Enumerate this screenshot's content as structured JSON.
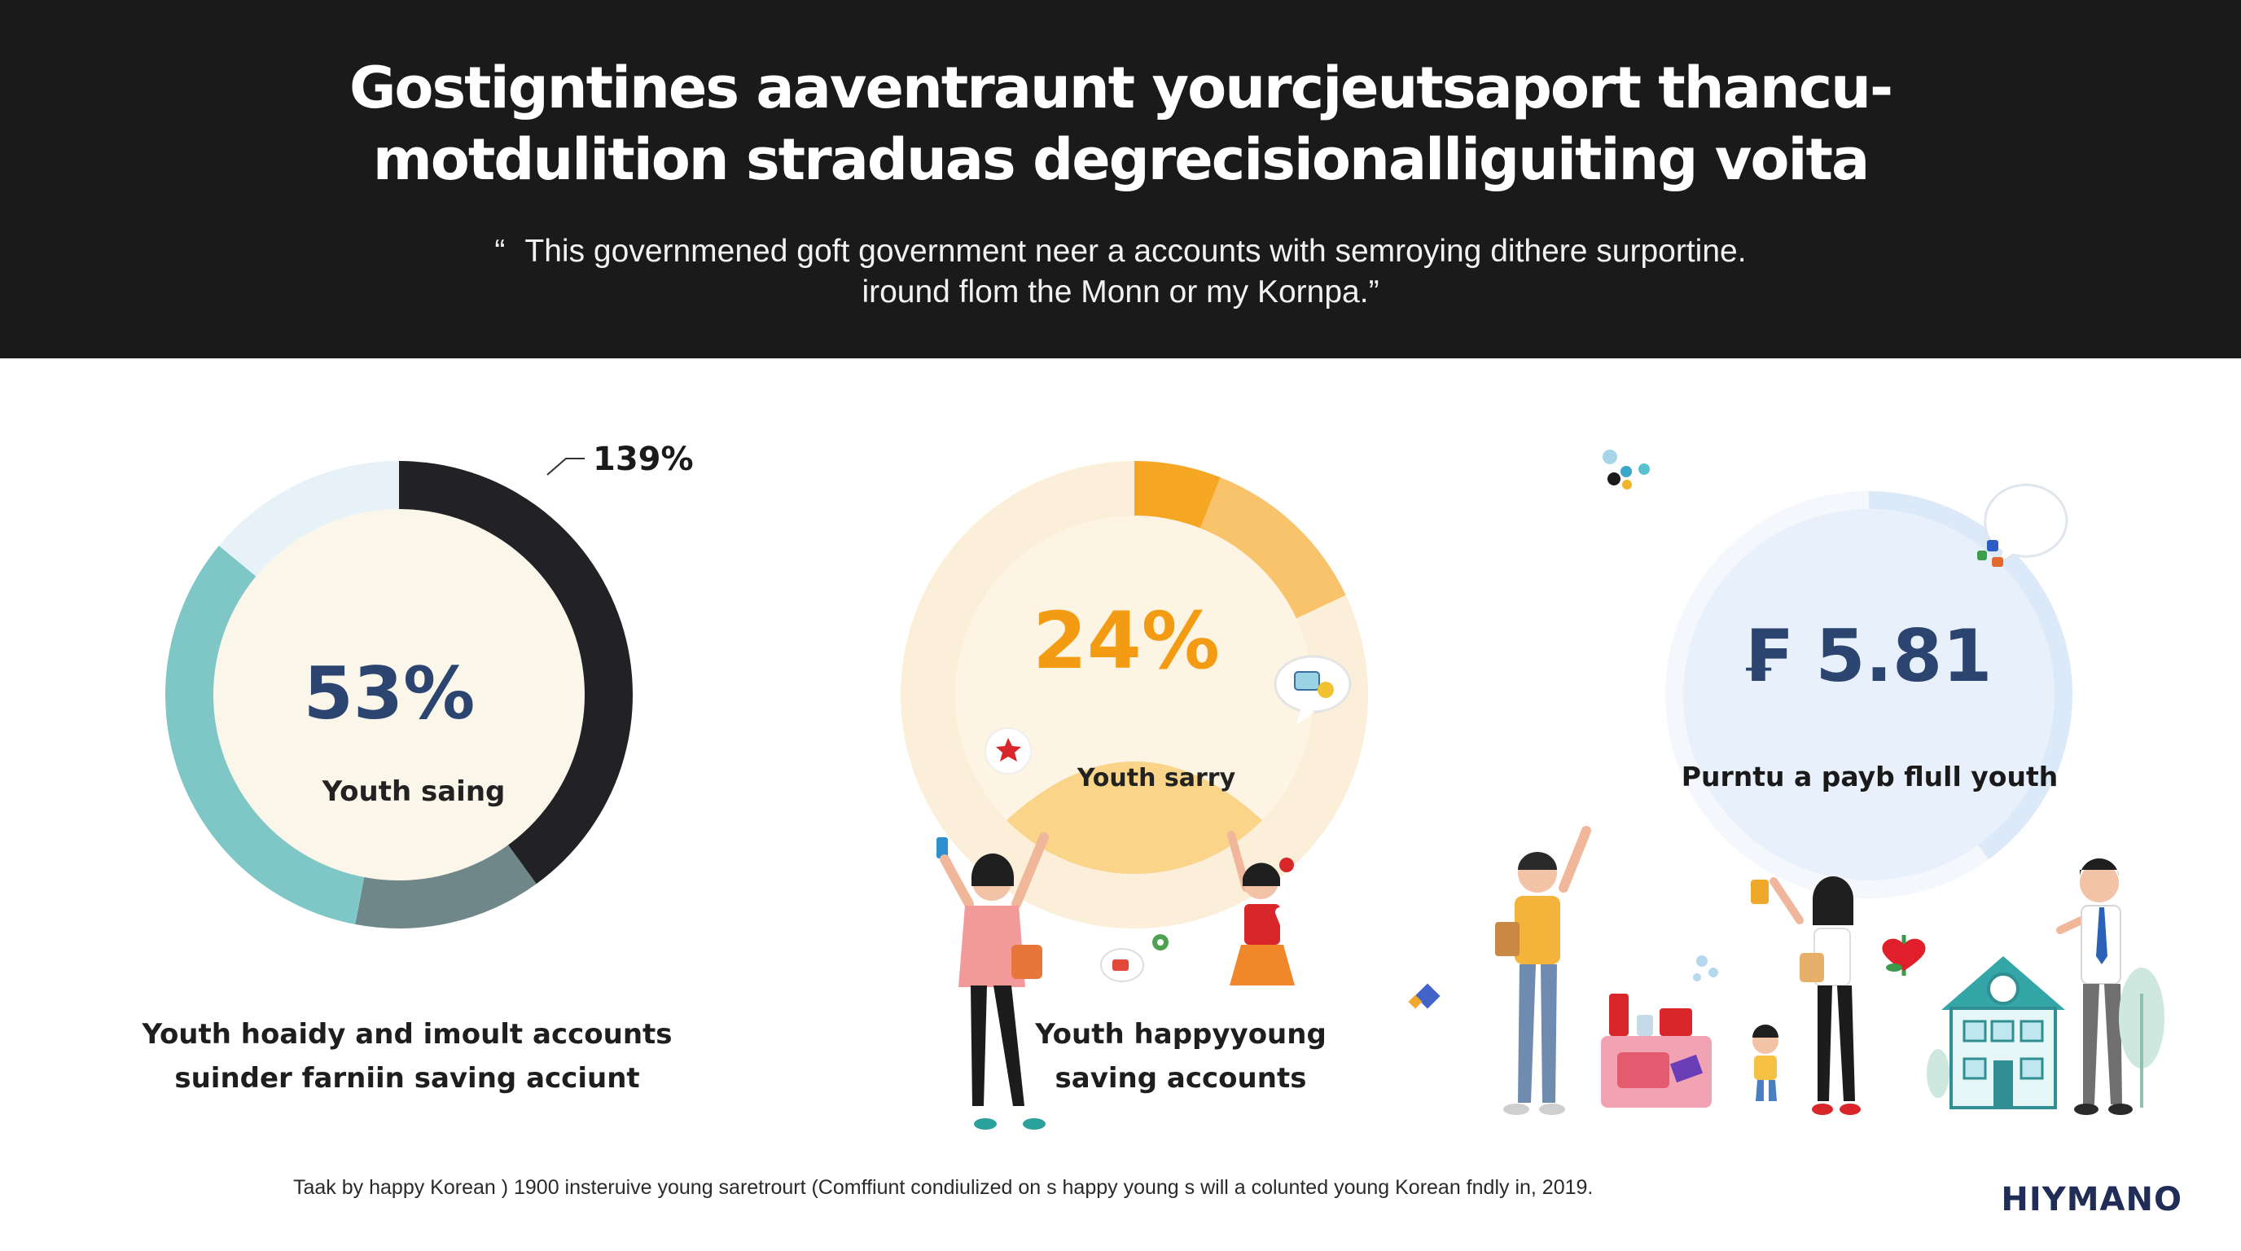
{
  "header": {
    "title_line1": "Gostigntines aaventraunt yourcjeutsaport thancu-",
    "title_line2": "motdulition straduas degrecisionalliguiting voita",
    "quote_mark": "“",
    "quote_line1": "This governmened goft government neer a accounts with semroying dithere surportine.",
    "quote_line2": "iround flom the Monn or my Kornpa.”"
  },
  "colors": {
    "header_bg": "#1a1a1a",
    "dark_navy": "#2b4470",
    "orange": "#f39b12",
    "teal": "#7fc7c6",
    "gray_teal": "#6f8788",
    "black_arc": "#222226",
    "light_blue": "#e4f0fb"
  },
  "chart_data": [
    {
      "type": "pie",
      "variant": "donut",
      "center_value": "53%",
      "center_label": "Youth saing",
      "annotation": "139%",
      "caption_line1": "Youth  hoaidy and imoult accounts",
      "caption_line2": "suinder farniin saving acciunt",
      "slices": [
        {
          "value": 40,
          "color": "#222226"
        },
        {
          "value": 13,
          "color": "#6f8788"
        },
        {
          "value": 33,
          "color": "#7fc7c6"
        },
        {
          "value": 14,
          "color": "#e6f1f8"
        }
      ]
    },
    {
      "type": "pie",
      "variant": "donut",
      "center_value": "24%",
      "center_label": "Youth sarry",
      "caption_line1": "Youth happyyoung",
      "caption_line2": "saving accounts",
      "slices": [
        {
          "value": 6,
          "color": "#f5a623"
        },
        {
          "value": 12,
          "color": "#f8c36a"
        },
        {
          "value": 82,
          "color": "#fbefd9"
        }
      ]
    },
    {
      "type": "pie",
      "variant": "donut",
      "center_value": "₣ 5.81",
      "center_label": "Purntu a payb flull youth",
      "slices": [
        {
          "value": 40,
          "color": "#dbe9f9"
        },
        {
          "value": 60,
          "color": "#f4f7fb"
        }
      ]
    }
  ],
  "footer": {
    "footnote": "Taak by happy Korean ) 1900 insteruive young saretrourt (Comffiunt condiulized on s happy young s will a colunted young Korean fndly in, 2019.",
    "brand": "HIYMANO"
  },
  "icons": {
    "chat_bubbles": [
      "chat-bubble-icon",
      "coin-bubble-icon",
      "chat-bubble-icon"
    ],
    "people": [
      "woman-phone-icon",
      "girl-cheering-icon",
      "man-waving-icon",
      "woman-flower-icon",
      "child-icon",
      "man-tie-icon"
    ],
    "objects": [
      "house-icon",
      "tree-icon",
      "shop-counter-icon",
      "heart-flower-icon"
    ]
  }
}
